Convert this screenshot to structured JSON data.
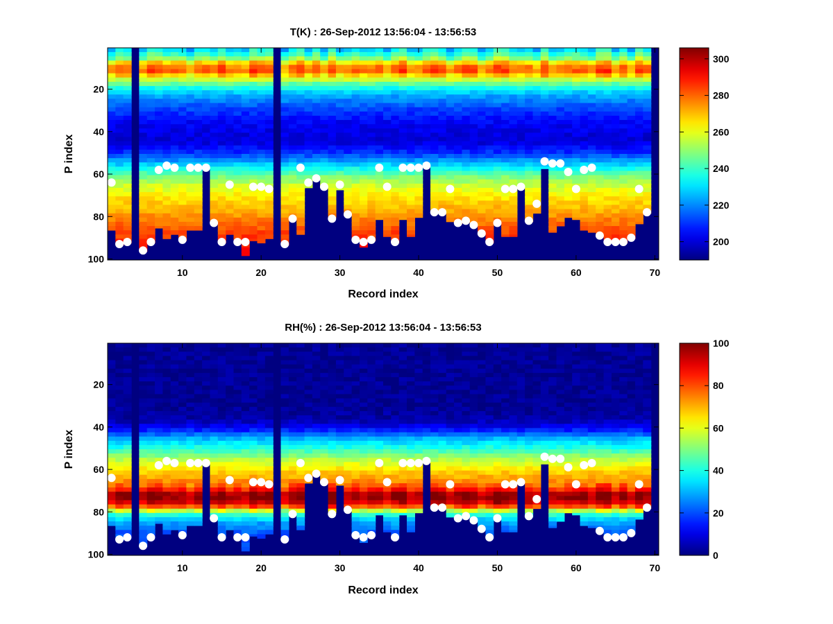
{
  "chart_data": [
    {
      "type": "heatmap",
      "title": "T(K) : 26-Sep-2012 13:56:04 - 13:56:53",
      "xlabel": "Record index",
      "ylabel": "P index",
      "xlim": [
        0.5,
        70.5
      ],
      "ylim": [
        100.5,
        0.5
      ],
      "y_reversed": true,
      "xticks": [
        10,
        20,
        30,
        40,
        50,
        60,
        70
      ],
      "yticks": [
        20,
        40,
        60,
        80,
        100
      ],
      "colormap": "jet",
      "colorbar": {
        "range": [
          190,
          306
        ],
        "ticks": [
          200,
          220,
          240,
          260,
          280,
          300
        ]
      },
      "missing_records": [
        4,
        22,
        70
      ],
      "surface_level": [
        86,
        93,
        92,
        0,
        96,
        92,
        85,
        90,
        88,
        91,
        86,
        86,
        57,
        83,
        92,
        88,
        92,
        98,
        91,
        92,
        90,
        0,
        93,
        81,
        88,
        66,
        62,
        66,
        80,
        67,
        79,
        91,
        94,
        91,
        81,
        89,
        92,
        81,
        89,
        80,
        56,
        78,
        78,
        82,
        83,
        82,
        84,
        87,
        92,
        83,
        89,
        89,
        66,
        82,
        78,
        57,
        87,
        84,
        80,
        81,
        86,
        87,
        89,
        92,
        92,
        92,
        90,
        83,
        78,
        0
      ],
      "marker_level": [
        64,
        93,
        92,
        null,
        96,
        92,
        58,
        56,
        57,
        91,
        57,
        57,
        57,
        83,
        92,
        65,
        92,
        92,
        66,
        66,
        67,
        null,
        93,
        81,
        57,
        64,
        62,
        66,
        81,
        65,
        79,
        91,
        92,
        91,
        57,
        66,
        92,
        57,
        57,
        57,
        56,
        78,
        78,
        67,
        83,
        82,
        84,
        88,
        92,
        83,
        67,
        67,
        66,
        82,
        74,
        54,
        55,
        55,
        59,
        67,
        58,
        57,
        89,
        92,
        92,
        92,
        90,
        67,
        78,
        null
      ]
    },
    {
      "type": "heatmap",
      "title": "RH(%) : 26-Sep-2012 13:56:04 - 13:56:53",
      "xlabel": "Record index",
      "ylabel": "P index",
      "xlim": [
        0.5,
        70.5
      ],
      "ylim": [
        100.5,
        0.5
      ],
      "y_reversed": true,
      "xticks": [
        10,
        20,
        30,
        40,
        50,
        60,
        70
      ],
      "yticks": [
        20,
        40,
        60,
        80,
        100
      ],
      "colormap": "jet",
      "colorbar": {
        "range": [
          0,
          100
        ],
        "ticks": [
          0,
          20,
          40,
          60,
          80,
          100
        ]
      },
      "missing_records": [
        4,
        22,
        70
      ],
      "surface_level": [
        86,
        93,
        92,
        0,
        96,
        92,
        85,
        90,
        88,
        91,
        86,
        86,
        57,
        83,
        92,
        88,
        92,
        98,
        91,
        92,
        90,
        0,
        93,
        81,
        88,
        66,
        62,
        66,
        80,
        67,
        79,
        91,
        94,
        91,
        81,
        89,
        92,
        81,
        89,
        80,
        56,
        78,
        78,
        82,
        83,
        82,
        84,
        87,
        92,
        83,
        89,
        89,
        66,
        82,
        78,
        57,
        87,
        84,
        80,
        81,
        86,
        87,
        89,
        92,
        92,
        92,
        90,
        83,
        78,
        0
      ],
      "marker_level": [
        64,
        93,
        92,
        null,
        96,
        92,
        58,
        56,
        57,
        91,
        57,
        57,
        57,
        83,
        92,
        65,
        92,
        92,
        66,
        66,
        67,
        null,
        93,
        81,
        57,
        64,
        62,
        66,
        81,
        65,
        79,
        91,
        92,
        91,
        57,
        66,
        92,
        57,
        57,
        57,
        56,
        78,
        78,
        67,
        83,
        82,
        84,
        88,
        92,
        83,
        67,
        67,
        66,
        82,
        74,
        54,
        55,
        55,
        59,
        67,
        58,
        57,
        89,
        92,
        92,
        92,
        90,
        67,
        78,
        null
      ]
    }
  ]
}
